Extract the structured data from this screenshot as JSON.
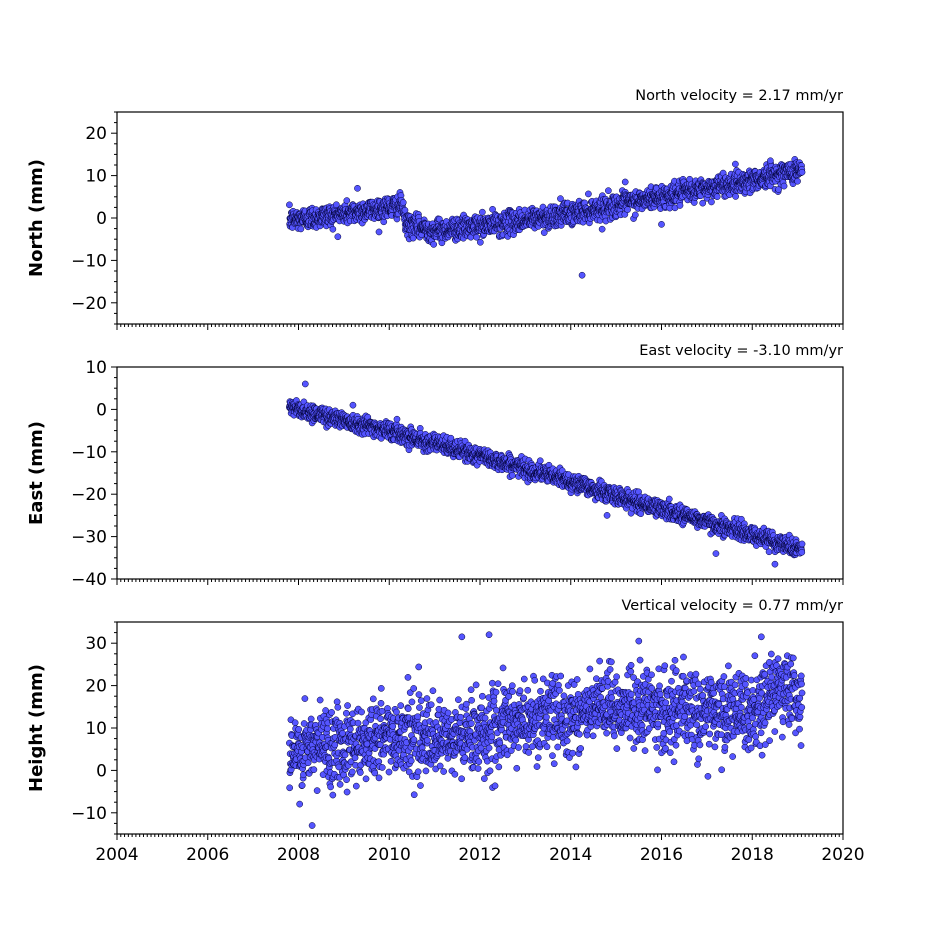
{
  "chart_data": [
    {
      "type": "scatter",
      "title": "North velocity = 2.17 mm/yr",
      "ylabel": "North (mm)",
      "xlim": [
        2004,
        2020
      ],
      "ylim": [
        -25,
        25
      ],
      "yticks": [
        -20,
        -10,
        0,
        10,
        20
      ],
      "series": [
        {
          "trend": [
            [
              2007.8,
              -0.5
            ],
            [
              2009.0,
              1.0
            ],
            [
              2010.0,
              2.5
            ],
            [
              2010.3,
              3.0
            ],
            [
              2010.35,
              -1.5
            ],
            [
              2011.0,
              -3.0
            ],
            [
              2012.0,
              -2.0
            ],
            [
              2013.0,
              -0.5
            ],
            [
              2014.0,
              1.0
            ],
            [
              2015.0,
              3.0
            ],
            [
              2016.0,
              5.0
            ],
            [
              2017.0,
              7.0
            ],
            [
              2018.0,
              9.0
            ],
            [
              2019.1,
              11.5
            ]
          ],
          "noise": 1.3,
          "outliers": [
            [
              2014.25,
              -13.5
            ],
            [
              2016.0,
              -1.5
            ],
            [
              2009.3,
              7.0
            ],
            [
              2015.2,
              8.5
            ],
            [
              2018.4,
              13.5
            ]
          ]
        }
      ]
    },
    {
      "type": "scatter",
      "title": "East velocity = -3.10 mm/yr",
      "ylabel": "East (mm)",
      "xlim": [
        2004,
        2020
      ],
      "ylim": [
        -40,
        10
      ],
      "yticks": [
        -40,
        -30,
        -20,
        -10,
        0,
        10
      ],
      "series": [
        {
          "trend": [
            [
              2007.8,
              0.5
            ],
            [
              2009.0,
              -2.5
            ],
            [
              2010.0,
              -5.0
            ],
            [
              2011.0,
              -8.0
            ],
            [
              2012.0,
              -11.0
            ],
            [
              2013.0,
              -14.0
            ],
            [
              2014.0,
              -17.0
            ],
            [
              2015.0,
              -20.5
            ],
            [
              2016.0,
              -23.5
            ],
            [
              2017.0,
              -26.5
            ],
            [
              2018.0,
              -29.5
            ],
            [
              2019.1,
              -33.0
            ]
          ],
          "noise": 1.0,
          "outliers": [
            [
              2008.15,
              6.0
            ],
            [
              2009.2,
              1.0
            ],
            [
              2018.5,
              -36.5
            ],
            [
              2017.2,
              -34.0
            ],
            [
              2014.8,
              -25.0
            ]
          ]
        }
      ]
    },
    {
      "type": "scatter",
      "title": "Vertical velocity = 0.77 mm/yr",
      "ylabel": "Height (mm)",
      "xlabel": "",
      "xlim": [
        2004,
        2020
      ],
      "ylim": [
        -15,
        35
      ],
      "yticks": [
        -10,
        0,
        10,
        20,
        30
      ],
      "xticks": [
        2004,
        2006,
        2008,
        2010,
        2012,
        2014,
        2016,
        2018,
        2020
      ],
      "series": [
        {
          "trend": [
            [
              2007.8,
              3.0
            ],
            [
              2008.5,
              6.0
            ],
            [
              2009.5,
              7.0
            ],
            [
              2010.5,
              9.0
            ],
            [
              2011.0,
              6.0
            ],
            [
              2012.0,
              9.0
            ],
            [
              2013.0,
              12.0
            ],
            [
              2014.0,
              13.0
            ],
            [
              2015.0,
              15.0
            ],
            [
              2016.0,
              14.0
            ],
            [
              2017.0,
              14.0
            ],
            [
              2018.0,
              13.0
            ],
            [
              2018.6,
              20.0
            ],
            [
              2019.1,
              17.0
            ]
          ],
          "noise": 4.5,
          "outliers": [
            [
              2011.6,
              31.5
            ],
            [
              2012.2,
              32.0
            ],
            [
              2008.3,
              -13.0
            ],
            [
              2018.2,
              31.5
            ],
            [
              2015.5,
              30.5
            ]
          ]
        }
      ]
    }
  ],
  "colors": {
    "marker_fill": "#5555ff",
    "marker_edge": "#000033",
    "axis": "#000000"
  }
}
